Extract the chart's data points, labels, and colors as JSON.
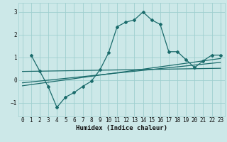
{
  "title": "",
  "xlabel": "Humidex (Indice chaleur)",
  "ylabel": "",
  "bg_color": "#cce8e8",
  "grid_color": "#9fcfcf",
  "line_color": "#1a6b6b",
  "xlim": [
    -0.5,
    23.5
  ],
  "ylim": [
    -1.6,
    3.4
  ],
  "xticks": [
    0,
    1,
    2,
    3,
    4,
    5,
    6,
    7,
    8,
    9,
    10,
    11,
    12,
    13,
    14,
    15,
    16,
    17,
    18,
    19,
    20,
    21,
    22,
    23
  ],
  "yticks": [
    -1,
    0,
    1,
    2,
    3
  ],
  "main_x": [
    1,
    2,
    3,
    4,
    5,
    6,
    7,
    8,
    9,
    10,
    11,
    12,
    13,
    14,
    15,
    16,
    17,
    18,
    19,
    20,
    21,
    22,
    23
  ],
  "main_y": [
    1.1,
    0.4,
    -0.3,
    -1.2,
    -0.75,
    -0.55,
    -0.28,
    -0.05,
    0.45,
    1.2,
    2.35,
    2.55,
    2.65,
    3.0,
    2.65,
    2.45,
    1.25,
    1.25,
    0.9,
    0.55,
    0.85,
    1.1,
    1.1
  ],
  "trend1_x": [
    0,
    23
  ],
  "trend1_y": [
    -0.25,
    0.95
  ],
  "trend2_x": [
    0,
    23
  ],
  "trend2_y": [
    -0.12,
    0.78
  ],
  "trend3_x": [
    0,
    23
  ],
  "trend3_y": [
    0.38,
    0.52
  ]
}
